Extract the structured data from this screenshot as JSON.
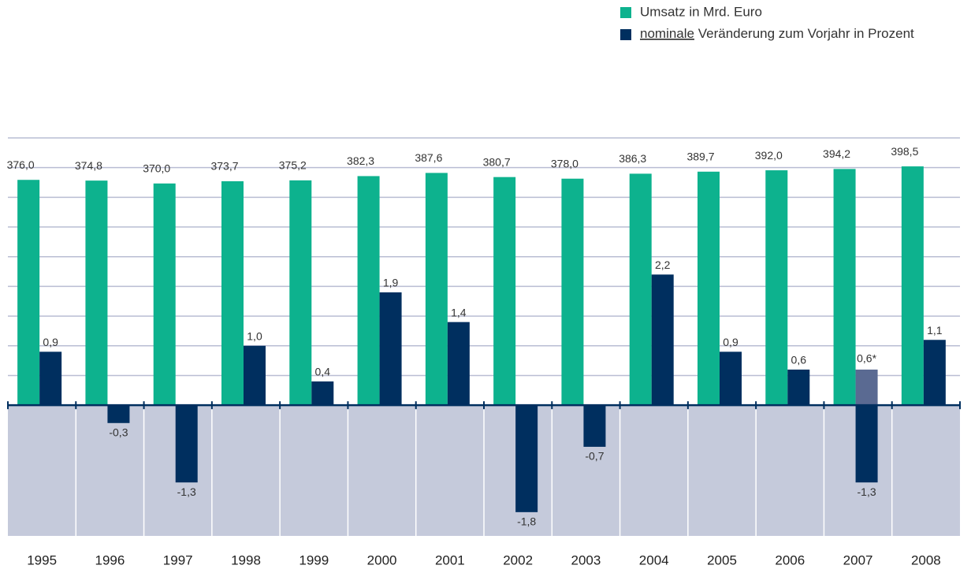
{
  "chart_data": {
    "type": "bar",
    "categories": [
      "1995",
      "1996",
      "1997",
      "1998",
      "1999",
      "2000",
      "2001",
      "2002",
      "2003",
      "2004",
      "2005",
      "2006",
      "2007",
      "2008"
    ],
    "series": [
      {
        "name": "Umsatz in Mrd. Euro",
        "color": "#0db28e",
        "axis": "y2",
        "values": [
          376.0,
          374.8,
          370.0,
          373.7,
          375.2,
          382.3,
          387.6,
          380.7,
          378.0,
          386.3,
          389.7,
          392.0,
          394.2,
          398.5
        ],
        "value_labels": [
          "376,0",
          "374,8",
          "370,0",
          "373,7",
          "375,2",
          "382,3",
          "387,6",
          "380,7",
          "378,0",
          "386,3",
          "389,7",
          "392,0",
          "394,2",
          "398,5"
        ]
      },
      {
        "name": "nominale Veränderung zum Vorjahr in Prozent",
        "color": "#002f5f",
        "values": [
          0.9,
          -0.3,
          -1.3,
          1.0,
          0.4,
          1.9,
          1.4,
          -1.8,
          -0.7,
          2.2,
          0.9,
          0.6,
          -1.3,
          1.1
        ],
        "value_labels": [
          "0,9",
          "-0,3",
          "-1,3",
          "1,0",
          "0,4",
          "1,9",
          "1,4",
          "-1,8",
          "-0,7",
          "2,2",
          "0,9",
          "0,6",
          "-1,3",
          "1,1"
        ]
      }
    ],
    "annotations": [
      {
        "category": "2007",
        "value": 0.6,
        "label": "0,6*",
        "color": "#5a6a92"
      }
    ],
    "ylim": [
      -2.2,
      4.5
    ],
    "yticks": [
      0.5,
      1,
      1.5,
      2,
      2.5,
      3,
      3.5,
      4,
      4.5
    ],
    "y2lim": [
      -218,
      446
    ],
    "grid": true,
    "legend": "top-right"
  }
}
